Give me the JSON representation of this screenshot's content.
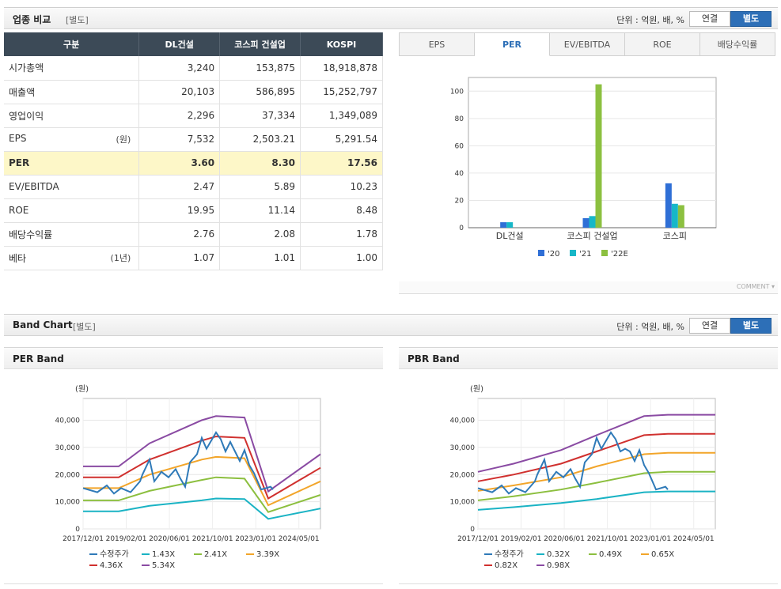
{
  "comparison": {
    "title": "업종 비교",
    "subtitle": "[별도]",
    "unit_label": "단위 : 억원, 배, %",
    "toggle_consolidated": "연결",
    "toggle_separate": "별도",
    "table": {
      "headers": [
        "구분",
        "DL건설",
        "코스피 건설업",
        "KOSPI"
      ],
      "rows": [
        {
          "label": "시가총액",
          "unit": "",
          "values": [
            "3,240",
            "153,875",
            "18,918,878"
          ]
        },
        {
          "label": "매출액",
          "unit": "",
          "values": [
            "20,103",
            "586,895",
            "15,252,797"
          ]
        },
        {
          "label": "영업이익",
          "unit": "",
          "values": [
            "2,296",
            "37,334",
            "1,349,089"
          ]
        },
        {
          "label": "EPS",
          "unit": "(원)",
          "values": [
            "7,532",
            "2,503.21",
            "5,291.54"
          ]
        },
        {
          "label": "PER",
          "unit": "",
          "values": [
            "3.60",
            "8.30",
            "17.56"
          ]
        },
        {
          "label": "EV/EBITDA",
          "unit": "",
          "values": [
            "2.47",
            "5.89",
            "10.23"
          ]
        },
        {
          "label": "ROE",
          "unit": "",
          "values": [
            "19.95",
            "11.14",
            "8.48"
          ]
        },
        {
          "label": "배당수익률",
          "unit": "",
          "values": [
            "2.76",
            "2.08",
            "1.78"
          ]
        },
        {
          "label": "베타",
          "unit": "(1년)",
          "values": [
            "1.07",
            "1.01",
            "1.00"
          ]
        }
      ]
    },
    "tabs": [
      "EPS",
      "PER",
      "EV/EBITDA",
      "ROE",
      "배당수익률"
    ],
    "active_tab": "PER",
    "comment_label": "COMMENT"
  },
  "band": {
    "title": "Band Chart",
    "subtitle": "[별도]",
    "unit_label": "단위 : 억원, 배, %",
    "toggle_consolidated": "연결",
    "toggle_separate": "별도",
    "per_title": "PER Band",
    "pbr_title": "PBR Band"
  },
  "colors": {
    "s20": "#2f6fd6",
    "s21": "#17b7c8",
    "s22": "#8cc040",
    "price": "#2f7ab8",
    "band1": "#1ab3c4",
    "band2": "#8cbf3f",
    "band3": "#f2a52a",
    "band4": "#d0302e",
    "band5": "#8a4ba3"
  },
  "chart_data": [
    {
      "type": "bar",
      "title": "PER",
      "categories": [
        "DL건설",
        "코스피 건설업",
        "코스피"
      ],
      "series": [
        {
          "name": "'20",
          "values": [
            4,
            7,
            32.5
          ]
        },
        {
          "name": "'21",
          "values": [
            4,
            8.5,
            17.5
          ]
        },
        {
          "name": "'22E",
          "values": [
            null,
            105,
            16.5
          ]
        }
      ],
      "ylim": [
        0,
        110
      ],
      "yticks": [
        0,
        20,
        40,
        60,
        80,
        100
      ]
    },
    {
      "type": "line",
      "title": "PER Band",
      "ylabel": "(원)",
      "ylim": [
        0,
        48000
      ],
      "yticks": [
        0,
        10000,
        20000,
        30000,
        40000
      ],
      "ytick_labels": [
        "0",
        "10,000",
        "20,000",
        "30,000",
        "40,000"
      ],
      "x": [
        "2017/12/01",
        "2019/02/01",
        "2020/06/01",
        "2021/10/01",
        "2023/01/01",
        "2024/05/01"
      ],
      "series": [
        {
          "name": "수정주가",
          "points": [
            [
              0,
              15000
            ],
            [
              0.06,
              13500
            ],
            [
              0.1,
              16000
            ],
            [
              0.13,
              13000
            ],
            [
              0.16,
              15000
            ],
            [
              0.2,
              13500
            ],
            [
              0.24,
              17500
            ],
            [
              0.25,
              20000
            ],
            [
              0.28,
              25500
            ],
            [
              0.3,
              17500
            ],
            [
              0.33,
              21000
            ],
            [
              0.36,
              19000
            ],
            [
              0.39,
              22000
            ],
            [
              0.41,
              18500
            ],
            [
              0.43,
              15500
            ],
            [
              0.45,
              24500
            ],
            [
              0.48,
              27500
            ],
            [
              0.5,
              33500
            ],
            [
              0.52,
              29500
            ],
            [
              0.54,
              32500
            ],
            [
              0.56,
              35500
            ],
            [
              0.58,
              33000
            ],
            [
              0.6,
              28500
            ],
            [
              0.62,
              32000
            ],
            [
              0.64,
              28500
            ],
            [
              0.66,
              25000
            ],
            [
              0.68,
              29000
            ],
            [
              0.7,
              23500
            ],
            [
              0.72,
              20500
            ],
            [
              0.75,
              14500
            ],
            [
              0.79,
              15500
            ],
            [
              0.8,
              14500
            ]
          ]
        },
        {
          "name": "1.43X",
          "points": [
            [
              0,
              6500
            ],
            [
              0.15,
              6500
            ],
            [
              0.28,
              8500
            ],
            [
              0.5,
              10500
            ],
            [
              0.56,
              11200
            ],
            [
              0.68,
              11000
            ],
            [
              0.78,
              3700
            ],
            [
              1,
              7500
            ]
          ]
        },
        {
          "name": "2.41X",
          "points": [
            [
              0,
              10500
            ],
            [
              0.15,
              10500
            ],
            [
              0.28,
              14000
            ],
            [
              0.5,
              18000
            ],
            [
              0.56,
              19000
            ],
            [
              0.68,
              18500
            ],
            [
              0.78,
              6200
            ],
            [
              1,
              12500
            ]
          ]
        },
        {
          "name": "3.39X",
          "points": [
            [
              0,
              15000
            ],
            [
              0.15,
              15000
            ],
            [
              0.28,
              20000
            ],
            [
              0.5,
              25500
            ],
            [
              0.56,
              26500
            ],
            [
              0.68,
              26000
            ],
            [
              0.78,
              8700
            ],
            [
              1,
              17500
            ]
          ]
        },
        {
          "name": "4.36X",
          "points": [
            [
              0,
              19000
            ],
            [
              0.15,
              19000
            ],
            [
              0.28,
              25500
            ],
            [
              0.5,
              32500
            ],
            [
              0.56,
              34000
            ],
            [
              0.68,
              33500
            ],
            [
              0.78,
              11200
            ],
            [
              1,
              22500
            ]
          ]
        },
        {
          "name": "5.34X",
          "points": [
            [
              0,
              23000
            ],
            [
              0.15,
              23000
            ],
            [
              0.28,
              31500
            ],
            [
              0.5,
              40000
            ],
            [
              0.56,
              41500
            ],
            [
              0.68,
              41000
            ],
            [
              0.78,
              13800
            ],
            [
              1,
              27500
            ]
          ]
        }
      ]
    },
    {
      "type": "line",
      "title": "PBR Band",
      "ylabel": "(원)",
      "ylim": [
        0,
        48000
      ],
      "yticks": [
        0,
        10000,
        20000,
        30000,
        40000
      ],
      "ytick_labels": [
        "0",
        "10,000",
        "20,000",
        "30,000",
        "40,000"
      ],
      "x": [
        "2017/12/01",
        "2019/02/01",
        "2020/06/01",
        "2021/10/01",
        "2023/01/01",
        "2024/05/01"
      ],
      "series": [
        {
          "name": "수정주가",
          "points": [
            [
              0,
              15000
            ],
            [
              0.06,
              13500
            ],
            [
              0.1,
              16000
            ],
            [
              0.13,
              13000
            ],
            [
              0.16,
              15000
            ],
            [
              0.2,
              13500
            ],
            [
              0.24,
              17500
            ],
            [
              0.25,
              20000
            ],
            [
              0.28,
              25500
            ],
            [
              0.3,
              17500
            ],
            [
              0.33,
              21000
            ],
            [
              0.36,
              19000
            ],
            [
              0.39,
              22000
            ],
            [
              0.41,
              18500
            ],
            [
              0.43,
              15500
            ],
            [
              0.45,
              24500
            ],
            [
              0.48,
              27500
            ],
            [
              0.5,
              33500
            ],
            [
              0.52,
              29500
            ],
            [
              0.54,
              32500
            ],
            [
              0.56,
              35500
            ],
            [
              0.58,
              33000
            ],
            [
              0.6,
              28500
            ],
            [
              0.62,
              29500
            ],
            [
              0.64,
              28500
            ],
            [
              0.66,
              25000
            ],
            [
              0.68,
              29000
            ],
            [
              0.7,
              23500
            ],
            [
              0.72,
              20500
            ],
            [
              0.75,
              14500
            ],
            [
              0.79,
              15500
            ],
            [
              0.8,
              14500
            ]
          ]
        },
        {
          "name": "0.32X",
          "points": [
            [
              0,
              7000
            ],
            [
              0.15,
              8000
            ],
            [
              0.35,
              9500
            ],
            [
              0.5,
              11000
            ],
            [
              0.7,
              13500
            ],
            [
              0.8,
              13800
            ],
            [
              1,
              13800
            ]
          ]
        },
        {
          "name": "0.49X",
          "points": [
            [
              0,
              10500
            ],
            [
              0.15,
              12000
            ],
            [
              0.35,
              14500
            ],
            [
              0.5,
              17000
            ],
            [
              0.7,
              20500
            ],
            [
              0.8,
              21000
            ],
            [
              1,
              21000
            ]
          ]
        },
        {
          "name": "0.65X",
          "points": [
            [
              0,
              14000
            ],
            [
              0.15,
              16000
            ],
            [
              0.35,
              19000
            ],
            [
              0.5,
              23000
            ],
            [
              0.7,
              27500
            ],
            [
              0.8,
              28000
            ],
            [
              1,
              28000
            ]
          ]
        },
        {
          "name": "0.82X",
          "points": [
            [
              0,
              17500
            ],
            [
              0.15,
              20000
            ],
            [
              0.35,
              24000
            ],
            [
              0.5,
              28500
            ],
            [
              0.7,
              34500
            ],
            [
              0.8,
              35000
            ],
            [
              1,
              35000
            ]
          ]
        },
        {
          "name": "0.98X",
          "points": [
            [
              0,
              21000
            ],
            [
              0.15,
              24000
            ],
            [
              0.35,
              29000
            ],
            [
              0.5,
              34500
            ],
            [
              0.7,
              41500
            ],
            [
              0.8,
              42000
            ],
            [
              1,
              42000
            ]
          ]
        }
      ]
    }
  ]
}
